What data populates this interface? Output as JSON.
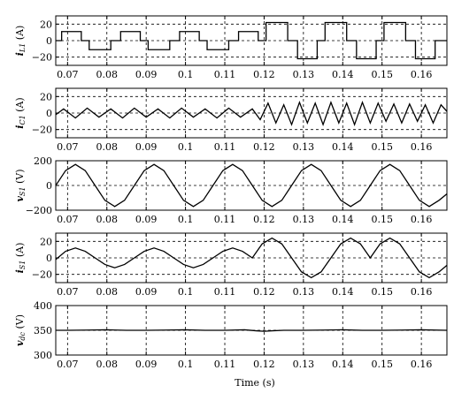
{
  "figure": {
    "xlabel": "Time (s)"
  },
  "chart_data": [
    {
      "type": "line",
      "id": "iL1",
      "ylabel_main": "i",
      "ylabel_sub": "L1",
      "ylabel_unit": " (A)",
      "xlim": [
        0.067,
        0.1665
      ],
      "ylim": [
        -30,
        30
      ],
      "xticks": [
        0.07,
        0.08,
        0.09,
        0.1,
        0.11,
        0.12,
        0.13,
        0.14,
        0.15,
        0.16
      ],
      "xtick_labels": [
        "0.07",
        "0.08",
        "0.09",
        "0.1",
        "0.11",
        "0.12",
        "0.13",
        "0.14",
        "0.15",
        "0.16"
      ],
      "yticks": [
        -20,
        0,
        20
      ],
      "ytick_labels": [
        "−20",
        "0",
        "20"
      ],
      "grid": true,
      "series": [
        {
          "x": [
            0.067,
            0.0685,
            0.0685,
            0.0735,
            0.0735,
            0.0755,
            0.0755,
            0.081,
            0.081,
            0.0835,
            0.0835,
            0.0885,
            0.0885,
            0.0905,
            0.0905,
            0.096,
            0.096,
            0.0985,
            0.0985,
            0.1035,
            0.1035,
            0.1055,
            0.1055,
            0.111,
            0.111,
            0.1135,
            0.1135,
            0.1185,
            0.1185,
            0.1205,
            0.1205,
            0.126,
            0.126,
            0.1285,
            0.1285,
            0.1335,
            0.1335,
            0.1355,
            0.1355,
            0.141,
            0.141,
            0.1435,
            0.1435,
            0.1485,
            0.1485,
            0.1505,
            0.1505,
            0.156,
            0.156,
            0.1585,
            0.1585,
            0.1635,
            0.1635,
            0.1665
          ],
          "y": [
            0,
            0,
            11,
            11,
            0,
            0,
            -11,
            -11,
            0,
            0,
            11,
            11,
            0,
            0,
            -11,
            -11,
            0,
            0,
            11,
            11,
            0,
            0,
            -11,
            -11,
            0,
            0,
            11,
            11,
            0,
            0,
            22,
            22,
            0,
            0,
            -22,
            -22,
            0,
            0,
            22,
            22,
            0,
            0,
            -22,
            -22,
            0,
            0,
            22,
            22,
            0,
            0,
            -22,
            -22,
            0,
            0
          ]
        }
      ]
    },
    {
      "type": "line",
      "id": "iC1",
      "ylabel_main": "i",
      "ylabel_sub": "C1",
      "ylabel_unit": " (A)",
      "xlim": [
        0.067,
        0.1665
      ],
      "ylim": [
        -30,
        30
      ],
      "xticks": [
        0.07,
        0.08,
        0.09,
        0.1,
        0.11,
        0.12,
        0.13,
        0.14,
        0.15,
        0.16
      ],
      "xtick_labels": [
        "0.07",
        "0.08",
        "0.09",
        "0.1",
        "0.11",
        "0.12",
        "0.13",
        "0.14",
        "0.15",
        "0.16"
      ],
      "yticks": [
        -20,
        0,
        20
      ],
      "ytick_labels": [
        "−20",
        "0",
        "20"
      ],
      "grid": true,
      "series": [
        {
          "x": [
            0.067,
            0.069,
            0.072,
            0.075,
            0.078,
            0.081,
            0.084,
            0.087,
            0.09,
            0.093,
            0.096,
            0.099,
            0.102,
            0.105,
            0.108,
            0.111,
            0.114,
            0.117,
            0.119,
            0.121,
            0.123,
            0.125,
            0.127,
            0.129,
            0.131,
            0.133,
            0.135,
            0.137,
            0.139,
            0.141,
            0.143,
            0.145,
            0.147,
            0.149,
            0.151,
            0.153,
            0.155,
            0.157,
            0.159,
            0.161,
            0.163,
            0.165,
            0.1665
          ],
          "y": [
            -2,
            5,
            -6,
            6,
            -5,
            5,
            -6,
            6,
            -5,
            5,
            -6,
            6,
            -5,
            5,
            -6,
            6,
            -5,
            5,
            -8,
            12,
            -12,
            10,
            -14,
            13,
            -12,
            12,
            -14,
            13,
            -12,
            12,
            -14,
            13,
            -12,
            12,
            -10,
            11,
            -12,
            11,
            -10,
            10,
            -12,
            10,
            2
          ]
        }
      ]
    },
    {
      "type": "line",
      "id": "vS1",
      "ylabel_main": "v",
      "ylabel_sub": "S1",
      "ylabel_unit": " (V)",
      "xlim": [
        0.067,
        0.1665
      ],
      "ylim": [
        -200,
        200
      ],
      "xticks": [
        0.07,
        0.08,
        0.09,
        0.1,
        0.11,
        0.12,
        0.13,
        0.14,
        0.15,
        0.16
      ],
      "xtick_labels": [
        "0.07",
        "0.08",
        "0.09",
        "0.1",
        "0.11",
        "0.12",
        "0.13",
        "0.14",
        "0.15",
        "0.16"
      ],
      "yticks": [
        -200,
        0,
        200
      ],
      "ytick_labels": [
        "−200",
        "0",
        "200"
      ],
      "grid": true,
      "series": [
        {
          "x": [
            0.067,
            0.0695,
            0.072,
            0.0745,
            0.077,
            0.0795,
            0.082,
            0.0845,
            0.087,
            0.0895,
            0.092,
            0.0945,
            0.097,
            0.0995,
            0.102,
            0.1045,
            0.107,
            0.1095,
            0.112,
            0.1145,
            0.117,
            0.1195,
            0.122,
            0.1245,
            0.127,
            0.1295,
            0.132,
            0.1345,
            0.137,
            0.1395,
            0.142,
            0.1445,
            0.147,
            0.1495,
            0.152,
            0.1545,
            0.157,
            0.1595,
            0.162,
            0.1645,
            0.1665
          ],
          "y": [
            0,
            120,
            170,
            120,
            0,
            -120,
            -170,
            -120,
            0,
            120,
            170,
            120,
            0,
            -120,
            -170,
            -120,
            0,
            120,
            170,
            120,
            0,
            -120,
            -170,
            -120,
            0,
            120,
            170,
            120,
            0,
            -120,
            -170,
            -120,
            0,
            120,
            170,
            120,
            0,
            -120,
            -170,
            -120,
            -68
          ]
        }
      ]
    },
    {
      "type": "line",
      "id": "iS1",
      "ylabel_main": "i",
      "ylabel_sub": "S1",
      "ylabel_unit": " (A)",
      "xlim": [
        0.067,
        0.1665
      ],
      "ylim": [
        -30,
        30
      ],
      "xticks": [
        0.07,
        0.08,
        0.09,
        0.1,
        0.11,
        0.12,
        0.13,
        0.14,
        0.15,
        0.16
      ],
      "xtick_labels": [
        "0.07",
        "0.08",
        "0.09",
        "0.1",
        "0.11",
        "0.12",
        "0.13",
        "0.14",
        "0.15",
        "0.16"
      ],
      "yticks": [
        -20,
        0,
        20
      ],
      "ytick_labels": [
        "−20",
        "0",
        "20"
      ],
      "grid": true,
      "series": [
        {
          "x": [
            0.067,
            0.0695,
            0.072,
            0.0745,
            0.077,
            0.0795,
            0.082,
            0.0845,
            0.087,
            0.0895,
            0.092,
            0.0945,
            0.097,
            0.0995,
            0.102,
            0.1045,
            0.107,
            0.1095,
            0.112,
            0.1145,
            0.117,
            0.1195,
            0.122,
            0.1245,
            0.127,
            0.1295,
            0.132,
            0.1345,
            0.137,
            0.1395,
            0.142,
            0.1445,
            0.147,
            0.1495,
            0.152,
            0.1545,
            0.157,
            0.1595,
            0.162,
            0.1645,
            0.1665
          ],
          "y": [
            -2,
            8,
            12,
            8,
            0,
            -8,
            -12,
            -8,
            0,
            8,
            12,
            8,
            0,
            -8,
            -12,
            -8,
            0,
            8,
            12,
            8,
            0,
            17,
            24,
            17,
            0,
            -17,
            -24,
            -17,
            0,
            17,
            24,
            17,
            0,
            17,
            24,
            17,
            0,
            -17,
            -24,
            -17,
            -9
          ]
        }
      ]
    },
    {
      "type": "line",
      "id": "vdc",
      "ylabel_main": "v",
      "ylabel_sub": "dc",
      "ylabel_unit": " (V)",
      "xlim": [
        0.067,
        0.1665
      ],
      "ylim": [
        300,
        400
      ],
      "xticks": [
        0.07,
        0.08,
        0.09,
        0.1,
        0.11,
        0.12,
        0.13,
        0.14,
        0.15,
        0.16
      ],
      "xtick_labels": [
        "0.07",
        "0.08",
        "0.09",
        "0.1",
        "0.11",
        "0.12",
        "0.13",
        "0.14",
        "0.15",
        "0.16"
      ],
      "yticks": [
        300,
        350,
        400
      ],
      "ytick_labels": [
        "300",
        "350",
        "400"
      ],
      "grid": true,
      "series": [
        {
          "x": [
            0.067,
            0.07,
            0.075,
            0.08,
            0.085,
            0.09,
            0.095,
            0.1,
            0.105,
            0.11,
            0.115,
            0.118,
            0.12,
            0.122,
            0.125,
            0.13,
            0.135,
            0.14,
            0.145,
            0.15,
            0.155,
            0.16,
            0.1665
          ],
          "y": [
            350,
            350,
            350.5,
            351,
            350,
            350,
            350.5,
            351,
            350,
            350,
            351,
            349,
            348,
            349,
            350,
            350,
            350.5,
            351,
            350,
            350,
            350.5,
            351,
            350
          ]
        }
      ]
    }
  ]
}
